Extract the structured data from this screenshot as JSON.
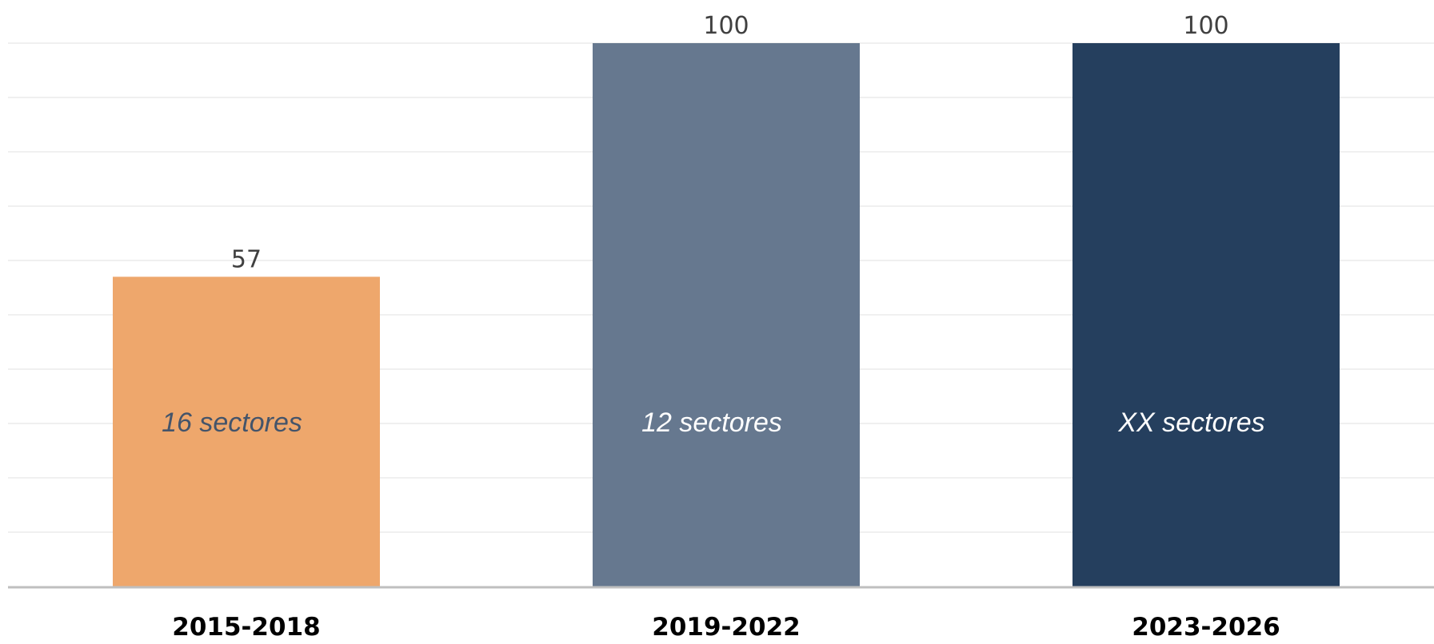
{
  "chart_data": {
    "type": "bar",
    "categories": [
      "2015-2018",
      "2019-2022",
      "2023-2026"
    ],
    "values": [
      57,
      100,
      100
    ],
    "data_labels": [
      "57",
      "100",
      "100"
    ],
    "bar_annotations": [
      "16 sectores",
      "12 sectores",
      "XX sectores"
    ],
    "ylim": [
      0,
      100
    ],
    "grid": true,
    "legend": "none",
    "colors": {
      "bars": [
        "#EEA76C",
        "#66788F",
        "#253F5E"
      ],
      "annotation_text": [
        "#44546A",
        "#FFFFFF",
        "#FFFFFF"
      ],
      "gridline": "#EBEBEB",
      "baseline": "#BFBFBF"
    }
  }
}
